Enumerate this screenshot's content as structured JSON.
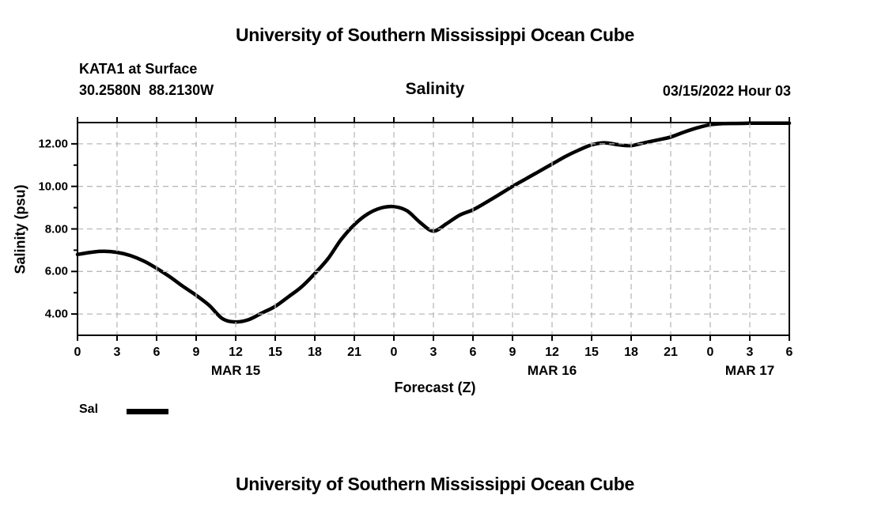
{
  "page": {
    "top_title": "University of Southern Mississippi Ocean Cube",
    "bottom_title": "University of Southern Mississippi Ocean Cube"
  },
  "header": {
    "station": "KATA1 at Surface",
    "coordinates": "30.2580N  88.2130W",
    "plot_title": "Salinity",
    "valid_time": "03/15/2022 Hour 03"
  },
  "legend": {
    "label": "Sal",
    "swatch_color": "#000000"
  },
  "colors": {
    "text": "#000000",
    "line": "#000000",
    "grid": "#b9b9b9",
    "frame": "#000000",
    "background": "#ffffff"
  },
  "chart_data": {
    "type": "line",
    "title": "Salinity",
    "xlabel": "Forecast (Z)",
    "ylabel": "Salinity (psu)",
    "grid": "dashed",
    "legend_position": "bottom-left",
    "xlim_hours": [
      0,
      54
    ],
    "ylim": [
      3,
      13
    ],
    "x_tick_step_hours": 3,
    "x_tick_labels": [
      "0",
      "3",
      "6",
      "9",
      "12",
      "15",
      "18",
      "21",
      "0",
      "3",
      "6",
      "9",
      "12",
      "15",
      "18",
      "21",
      "0",
      "3",
      "6"
    ],
    "x_date_labels": [
      {
        "label": "MAR 15",
        "hour": 12
      },
      {
        "label": "MAR 16",
        "hour": 36
      },
      {
        "label": "MAR 17",
        "hour": 51
      }
    ],
    "y_major_ticks": [
      {
        "value": 4,
        "label": "4.00"
      },
      {
        "value": 6,
        "label": "6.00"
      },
      {
        "value": 8,
        "label": "8.00"
      },
      {
        "value": 10,
        "label": "10.00"
      },
      {
        "value": 12,
        "label": "12.00"
      }
    ],
    "y_minor_ticks": [
      5,
      7,
      9,
      11
    ],
    "series": [
      {
        "name": "Sal",
        "color": "#000000",
        "x_hours": [
          0,
          1,
          2,
          3,
          4,
          5,
          6,
          7,
          8,
          9,
          10,
          11,
          12,
          13,
          14,
          15,
          16,
          17,
          18,
          19,
          20,
          21,
          22,
          23,
          24,
          25,
          26,
          27,
          28,
          29,
          30,
          31,
          32,
          33,
          34,
          35,
          36,
          37,
          38,
          39,
          40,
          41,
          42,
          43,
          44,
          45,
          46,
          47,
          48,
          49,
          50,
          51,
          52,
          53,
          54
        ],
        "values": [
          6.8,
          6.9,
          6.95,
          6.9,
          6.75,
          6.5,
          6.15,
          5.75,
          5.3,
          4.88,
          4.4,
          3.78,
          3.63,
          3.74,
          4.05,
          4.36,
          4.81,
          5.28,
          5.9,
          6.6,
          7.5,
          8.2,
          8.7,
          8.98,
          9.05,
          8.85,
          8.3,
          7.9,
          8.25,
          8.65,
          8.9,
          9.25,
          9.62,
          10.0,
          10.35,
          10.7,
          11.05,
          11.4,
          11.7,
          11.95,
          12.05,
          11.96,
          11.92,
          12.05,
          12.18,
          12.32,
          12.55,
          12.75,
          12.9,
          12.95,
          12.96,
          12.97,
          12.97,
          12.97,
          12.97
        ]
      }
    ]
  }
}
